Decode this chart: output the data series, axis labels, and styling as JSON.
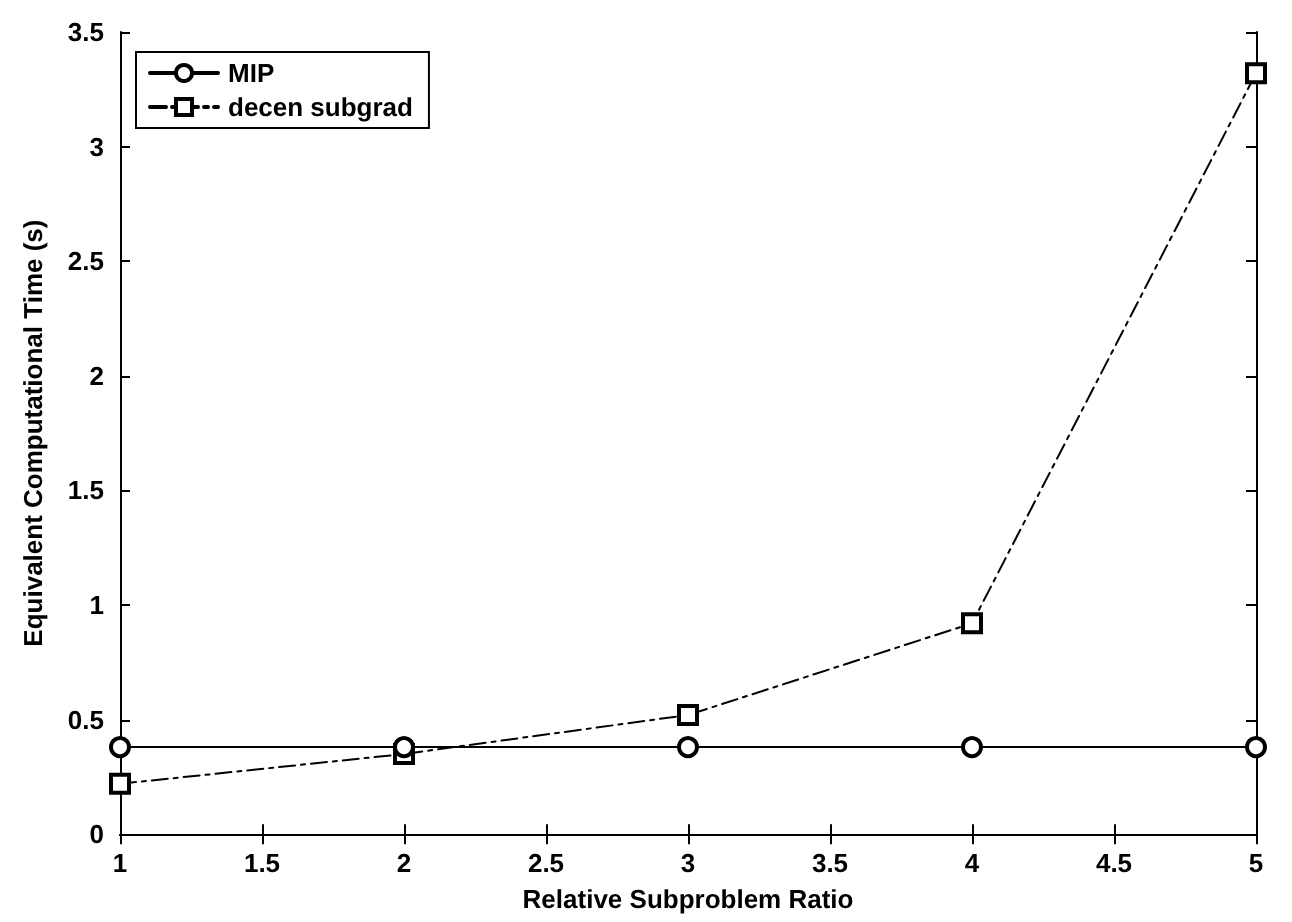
{
  "chart_data": {
    "type": "line",
    "xlabel": "Relative Subproblem Ratio",
    "ylabel": "Equivalent Computational Time (s)",
    "x": [
      1,
      2,
      3,
      4,
      5
    ],
    "series": [
      {
        "name": "MIP",
        "color": "#000000",
        "values": [
          0.38,
          0.38,
          0.38,
          0.38,
          0.38
        ],
        "marker": "circle",
        "line_style": "solid"
      },
      {
        "name": "decen subgrad",
        "color": "#000000",
        "values": [
          0.22,
          0.35,
          0.52,
          0.92,
          3.32
        ],
        "marker": "square",
        "line_style": "dashed"
      }
    ],
    "xlim": [
      1,
      5
    ],
    "xticks": [
      1,
      1.5,
      2,
      2.5,
      3,
      3.5,
      4,
      4.5,
      5
    ],
    "ylim": [
      0,
      3.5
    ],
    "yticks": [
      0,
      0.5,
      1,
      1.5,
      2,
      2.5,
      3,
      3.5
    ],
    "grid": false,
    "legend": "top left"
  }
}
